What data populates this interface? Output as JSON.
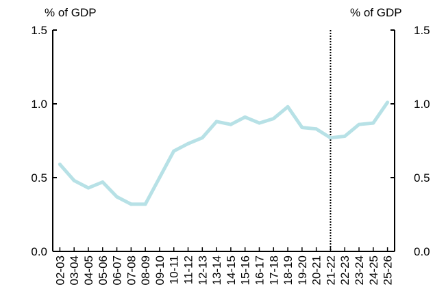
{
  "chart_data": {
    "type": "line",
    "y_unit_left": "% of GDP",
    "y_unit_right": "% of GDP",
    "ylim": [
      0,
      1.5
    ],
    "yticks": [
      0.0,
      0.5,
      1.0,
      1.5
    ],
    "ytick_labels": [
      "0.0",
      "0.5",
      "1.0",
      "1.5"
    ],
    "grid": false,
    "categories": [
      "02-03",
      "03-04",
      "04-05",
      "05-06",
      "06-07",
      "07-08",
      "08-09",
      "09-10",
      "10-11",
      "11-12",
      "12-13",
      "13-14",
      "14-15",
      "15-16",
      "16-17",
      "17-18",
      "18-19",
      "19-20",
      "20-21",
      "21-22",
      "22-23",
      "23-24",
      "24-25",
      "25-26"
    ],
    "series": [
      {
        "color": "#b7e1e6",
        "values": [
          0.59,
          0.48,
          0.43,
          0.47,
          0.37,
          0.32,
          0.32,
          0.5,
          0.68,
          0.73,
          0.77,
          0.88,
          0.86,
          0.91,
          0.87,
          0.9,
          0.98,
          0.84,
          0.83,
          0.77,
          0.78,
          0.86,
          0.87,
          1.01
        ]
      }
    ],
    "divider_after_category": "21-22"
  }
}
